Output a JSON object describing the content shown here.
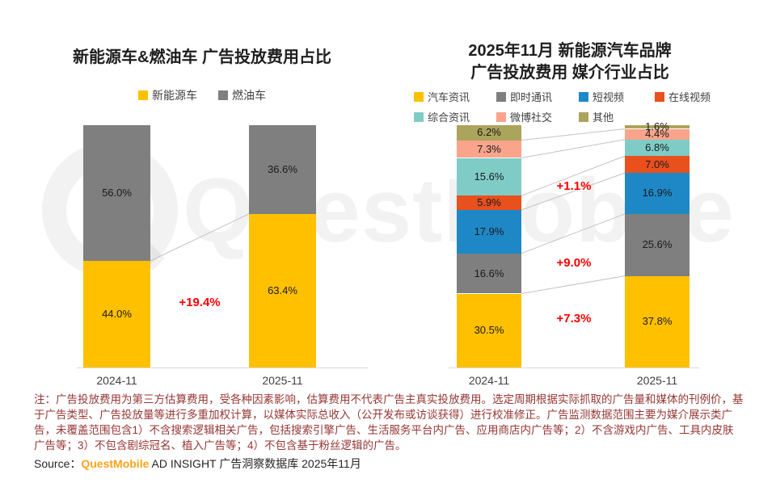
{
  "watermark": {
    "text": "QuestMobile"
  },
  "chart_data": [
    {
      "type": "bar",
      "stacked": true,
      "title": "新能源车&燃油车 广告投放费用占比",
      "categories": [
        "2024-11",
        "2025-11"
      ],
      "ylim": [
        0,
        100
      ],
      "unit": "%",
      "legend_position": "top",
      "series": [
        {
          "name": "新能源车",
          "color": "#FFC000",
          "values": [
            44.0,
            63.4
          ]
        },
        {
          "name": "燃油车",
          "color": "#7F7F7F",
          "values": [
            56.0,
            36.6
          ]
        }
      ],
      "annotations": [
        {
          "text": "+19.4%",
          "color": "#FF0000"
        }
      ]
    },
    {
      "type": "bar",
      "stacked": true,
      "title": "2025年11月 新能源汽车品牌 广告投放费用 媒介行业占比",
      "title_lines": [
        "2025年11月 新能源汽车品牌",
        "广告投放费用 媒介行业占比"
      ],
      "categories": [
        "2024-11",
        "2025-11"
      ],
      "ylim": [
        0,
        100
      ],
      "unit": "%",
      "legend_position": "top",
      "series": [
        {
          "name": "汽车资讯",
          "color": "#FFC000",
          "values": [
            30.5,
            37.8
          ]
        },
        {
          "name": "即时通讯",
          "color": "#7F7F7F",
          "values": [
            16.6,
            25.6
          ]
        },
        {
          "name": "短视频",
          "color": "#1E88C7",
          "values": [
            17.9,
            16.9
          ]
        },
        {
          "name": "在线视频",
          "color": "#E8501E",
          "values": [
            5.9,
            7.0
          ]
        },
        {
          "name": "综合资讯",
          "color": "#7FCCC7",
          "values": [
            15.6,
            6.8
          ]
        },
        {
          "name": "微博社交",
          "color": "#F9A48B",
          "values": [
            7.3,
            4.4
          ]
        },
        {
          "name": "其他",
          "color": "#ABA45C",
          "values": [
            6.2,
            1.6
          ]
        }
      ],
      "annotations": [
        {
          "text": "+7.3%",
          "color": "#FF0000"
        },
        {
          "text": "+9.0%",
          "color": "#FF0000"
        },
        {
          "text": "+1.1%",
          "color": "#FF0000"
        }
      ]
    }
  ],
  "note": {
    "text": "注：广告投放费用为第三方估算费用，受各种因素影响，估算费用不代表广告主真实投放费用。选定周期根据实际抓取的广告量和媒体的刊例价，基于广告类型、广告投放量等进行多重加权计算，以媒体实际总收入（公开发布或访谈获得）进行校准修正。广告监测数据范围主要为媒介展示类广告，未覆盖范围包含1）不含搜索逻辑相关广告，包括搜索引擎广告、生活服务平台内广告、应用商店内广告等；2）不含游戏内广告、工具内皮肤广告等；3）不包含剧综冠名、植入广告等；4）不包含基于粉丝逻辑的广告。"
  },
  "source": {
    "prefix": "Source：",
    "brand": "QuestMobile",
    "suffix": " AD INSIGHT 广告洞察数据库 2025年11月"
  }
}
